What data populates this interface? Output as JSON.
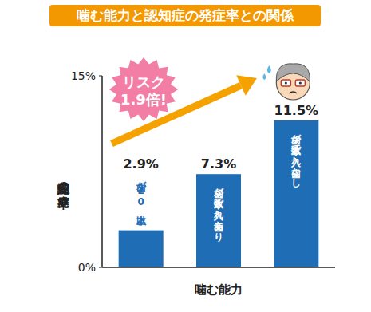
{
  "chart_data": {
    "type": "bar",
    "title": "噛む能力と認知症の発症率との関係",
    "x_label": "噛む能力",
    "y_label": "認知症の発症率",
    "categories": [
      "歯が20本以上",
      "歯が数本で入れ歯あり",
      "歯が数本で入れ歯なし"
    ],
    "values": [
      2.9,
      7.3,
      11.5
    ],
    "value_labels": [
      "2.9%",
      "7.3%",
      "11.5%"
    ],
    "color": "#1f6db5",
    "ylim": [
      0,
      15
    ],
    "yticks": [
      {
        "value": 0,
        "label": "0%"
      },
      {
        "value": 15,
        "label": "15%"
      }
    ],
    "grid": false,
    "data_labels": true,
    "annotation": [
      "リスク",
      "1.9倍!"
    ]
  }
}
